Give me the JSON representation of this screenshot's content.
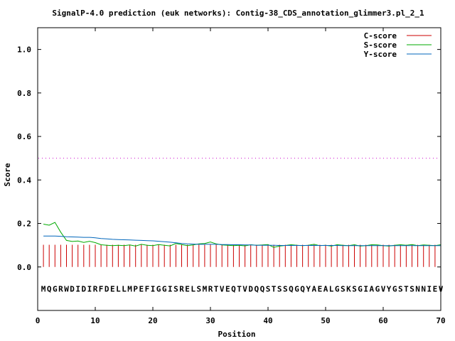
{
  "chart_data": {
    "type": "line",
    "title": "SignalP-4.0 prediction (euk networks): Contig-38_CDS_annotation_glimmer3.pl_2_1",
    "xlabel": "Position",
    "ylabel": "Score",
    "xlim": [
      0,
      70
    ],
    "ylim": [
      -0.2,
      1.1
    ],
    "xticks": [
      0,
      10,
      20,
      30,
      40,
      50,
      60,
      70
    ],
    "yticks": [
      0.0,
      0.2,
      0.4,
      0.6,
      0.8,
      1.0
    ],
    "ytick_labels": [
      "0.0",
      "0.2",
      "0.4",
      "0.6",
      "0.8",
      "1.0"
    ],
    "grid": false,
    "legend_position": "top-right",
    "threshold": {
      "value": 0.5,
      "color": "#cc00cc",
      "style": "dotted"
    },
    "sequence": [
      "M",
      "Q",
      "G",
      "R",
      "W",
      "D",
      "I",
      "D",
      "I",
      "R",
      "F",
      "D",
      "E",
      "L",
      "L",
      "M",
      "P",
      "E",
      "F",
      "I",
      "G",
      "G",
      "I",
      "S",
      "R",
      "E",
      "L",
      "S",
      "M",
      "R",
      "T",
      "V",
      "E",
      "Q",
      "T",
      "V",
      "D",
      "Q",
      "Q",
      "S",
      "T",
      "S",
      "S",
      "Q",
      "G",
      "Q",
      "Y",
      "A",
      "E",
      "A",
      "L",
      "G",
      "S",
      "K",
      "S",
      "G",
      "I",
      "A",
      "G",
      "V",
      "Y",
      "G",
      "S",
      "T",
      "S",
      "N",
      "N",
      "I",
      "E",
      "V"
    ],
    "series": [
      {
        "name": "C-score",
        "color": "#cc0000",
        "style": "impulse",
        "values": [
          0.102,
          0.102,
          0.102,
          0.102,
          0.102,
          0.102,
          0.102,
          0.102,
          0.102,
          0.102,
          0.102,
          0.102,
          0.102,
          0.102,
          0.102,
          0.102,
          0.102,
          0.102,
          0.102,
          0.102,
          0.102,
          0.102,
          0.102,
          0.102,
          0.102,
          0.102,
          0.102,
          0.102,
          0.102,
          0.102,
          0.102,
          0.102,
          0.102,
          0.102,
          0.102,
          0.102,
          0.102,
          0.102,
          0.102,
          0.102,
          0.102,
          0.102,
          0.102,
          0.102,
          0.102,
          0.102,
          0.102,
          0.102,
          0.102,
          0.102,
          0.102,
          0.102,
          0.102,
          0.102,
          0.102,
          0.102,
          0.102,
          0.102,
          0.102,
          0.102,
          0.102,
          0.102,
          0.102,
          0.102,
          0.102,
          0.102,
          0.102,
          0.102,
          0.102,
          0.102
        ]
      },
      {
        "name": "S-score",
        "color": "#00aa00",
        "style": "line",
        "values": [
          0.197,
          0.192,
          0.205,
          0.16,
          0.122,
          0.117,
          0.119,
          0.113,
          0.118,
          0.112,
          0.102,
          0.1,
          0.098,
          0.1,
          0.098,
          0.101,
          0.096,
          0.104,
          0.1,
          0.098,
          0.103,
          0.1,
          0.097,
          0.108,
          0.103,
          0.098,
          0.101,
          0.106,
          0.108,
          0.115,
          0.106,
          0.101,
          0.1,
          0.098,
          0.1,
          0.097,
          0.102,
          0.1,
          0.101,
          0.103,
          0.09,
          0.096,
          0.099,
          0.102,
          0.1,
          0.098,
          0.1,
          0.104,
          0.098,
          0.1,
          0.096,
          0.102,
          0.1,
          0.098,
          0.102,
          0.096,
          0.098,
          0.102,
          0.101,
          0.098,
          0.096,
          0.1,
          0.102,
          0.1,
          0.103,
          0.098,
          0.101,
          0.1,
          0.098,
          0.102
        ]
      },
      {
        "name": "Y-score",
        "color": "#0066bb",
        "style": "line",
        "values": [
          0.142,
          0.142,
          0.142,
          0.141,
          0.139,
          0.138,
          0.137,
          0.136,
          0.136,
          0.134,
          0.131,
          0.129,
          0.127,
          0.126,
          0.125,
          0.124,
          0.123,
          0.122,
          0.121,
          0.12,
          0.118,
          0.116,
          0.114,
          0.111,
          0.108,
          0.106,
          0.105,
          0.104,
          0.104,
          0.104,
          0.104,
          0.103,
          0.103,
          0.102,
          0.102,
          0.101,
          0.101,
          0.1,
          0.1,
          0.1,
          0.1,
          0.099,
          0.099,
          0.099,
          0.099,
          0.099,
          0.099,
          0.099,
          0.099,
          0.099,
          0.099,
          0.099,
          0.098,
          0.098,
          0.098,
          0.098,
          0.098,
          0.098,
          0.098,
          0.098,
          0.098,
          0.098,
          0.098,
          0.098,
          0.098,
          0.098,
          0.098,
          0.098,
          0.098,
          0.098
        ]
      }
    ]
  }
}
